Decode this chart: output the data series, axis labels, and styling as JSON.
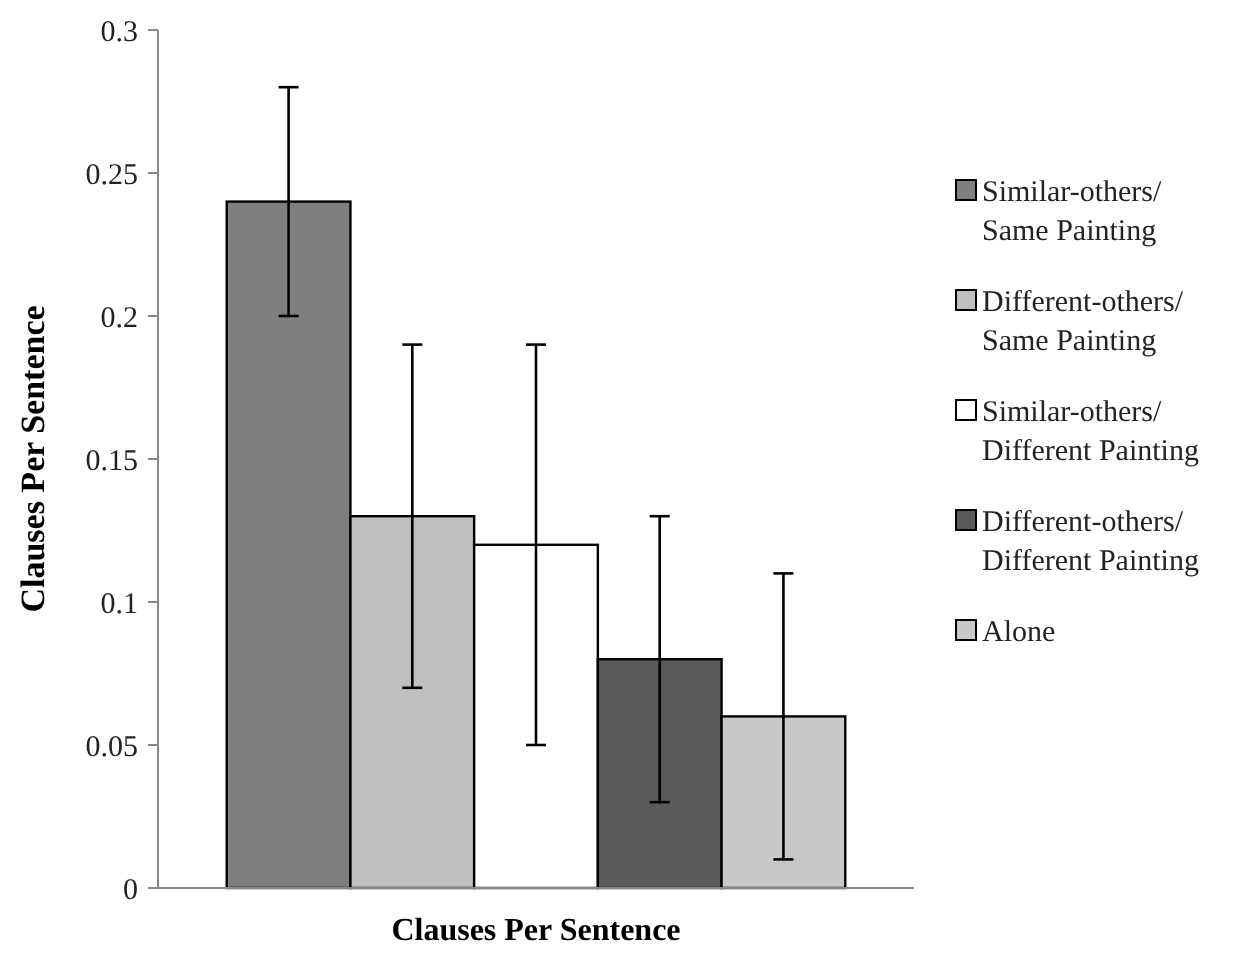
{
  "chart_data": {
    "type": "bar",
    "xlabel": "Clauses Per Sentence",
    "ylabel": "Clauses Per Sentence",
    "categories": [
      null
    ],
    "series": [
      {
        "name": "Similar-others/ Same Painting",
        "color": "#7f7f7f",
        "values": [
          0.24
        ],
        "errors": [
          0.04
        ]
      },
      {
        "name": "Different-others/ Same Painting",
        "color": "#bfbfbf",
        "values": [
          0.13
        ],
        "errors": [
          0.06
        ]
      },
      {
        "name": "Similar-others/ Different Painting",
        "color": "#ffffff",
        "values": [
          0.12
        ],
        "errors": [
          0.07
        ]
      },
      {
        "name": "Different-others/ Different Painting",
        "color": "#5a5a5a",
        "values": [
          0.08
        ],
        "errors": [
          0.05
        ]
      },
      {
        "name": "Alone",
        "color": "#c8c8c8",
        "values": [
          0.06
        ],
        "errors": [
          0.05
        ]
      }
    ],
    "ylim": [
      0,
      0.3
    ],
    "yticks": [
      0,
      0.05,
      0.1,
      0.15,
      0.2,
      0.25,
      0.3
    ],
    "grid": false,
    "legend": "right"
  }
}
